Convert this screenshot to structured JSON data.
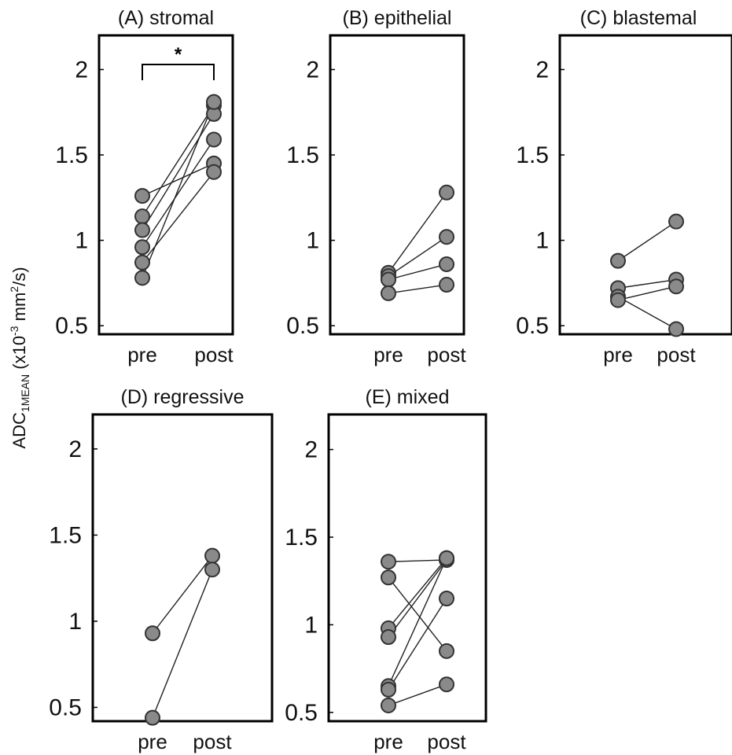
{
  "y_axis_label": {
    "main": "ADC",
    "sub": "1MEAN",
    "unit_pre": " (x10",
    "unit_sup_1": "-3",
    "unit_mid": " mm",
    "unit_sup_2": "2",
    "unit_post": "/s)"
  },
  "chart_data": [
    {
      "type": "scatter",
      "title": "(A) stromal",
      "categories": [
        "pre",
        "post"
      ],
      "yticks": [
        "2",
        "1.5",
        "1",
        "0.5"
      ],
      "ytick_values": [
        2,
        1.5,
        1,
        0.5
      ],
      "ylim": [
        0.45,
        2.2
      ],
      "pairs": [
        [
          1.26,
          1.45
        ],
        [
          1.14,
          1.79
        ],
        [
          1.06,
          1.74
        ],
        [
          0.96,
          1.59
        ],
        [
          0.87,
          1.4
        ],
        [
          0.78,
          1.81
        ]
      ],
      "significance": {
        "marker": "*",
        "between": [
          "pre",
          "post"
        ]
      }
    },
    {
      "type": "scatter",
      "title": "(B) epithelial",
      "categories": [
        "pre",
        "post"
      ],
      "yticks": [
        "2",
        "1.5",
        "1",
        "0.5"
      ],
      "ytick_values": [
        2,
        1.5,
        1,
        0.5
      ],
      "ylim": [
        0.45,
        2.2
      ],
      "pairs": [
        [
          0.81,
          1.28
        ],
        [
          0.79,
          1.02
        ],
        [
          0.77,
          0.86
        ],
        [
          0.69,
          0.74
        ]
      ]
    },
    {
      "type": "scatter",
      "title": "(C) blastemal",
      "categories": [
        "pre",
        "post"
      ],
      "yticks": [
        "2",
        "1.5",
        "1",
        "0.5"
      ],
      "ytick_values": [
        2,
        1.5,
        1,
        0.5
      ],
      "ylim": [
        0.45,
        2.2
      ],
      "pairs": [
        [
          0.88,
          1.11
        ],
        [
          0.72,
          0.77
        ],
        [
          0.67,
          0.48
        ],
        [
          0.65,
          0.73
        ]
      ]
    },
    {
      "type": "scatter",
      "title": "(D) regressive",
      "categories": [
        "pre",
        "post"
      ],
      "yticks": [
        "2",
        "1.5",
        "1",
        "0.5"
      ],
      "ytick_values": [
        2,
        1.5,
        1,
        0.5
      ],
      "ylim": [
        0.42,
        2.2
      ],
      "pairs": [
        [
          0.93,
          1.38
        ],
        [
          0.44,
          1.3
        ]
      ]
    },
    {
      "type": "scatter",
      "title": "(E) mixed",
      "categories": [
        "pre",
        "post"
      ],
      "yticks": [
        "2",
        "1.5",
        "1",
        "0.5"
      ],
      "ytick_values": [
        2,
        1.5,
        1,
        0.5
      ],
      "ylim": [
        0.45,
        2.2
      ],
      "pairs": [
        [
          1.36,
          1.37
        ],
        [
          1.27,
          0.85
        ],
        [
          0.98,
          1.38
        ],
        [
          0.93,
          1.37
        ],
        [
          0.65,
          1.38
        ],
        [
          0.63,
          1.15
        ],
        [
          0.54,
          0.66
        ]
      ]
    }
  ]
}
